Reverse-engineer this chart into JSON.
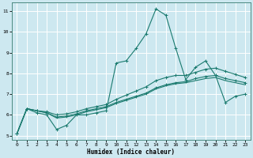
{
  "xlabel": "Humidex (Indice chaleur)",
  "xlim": [
    -0.5,
    23.5
  ],
  "ylim": [
    4.8,
    11.4
  ],
  "yticks": [
    5,
    6,
    7,
    8,
    9,
    10,
    11
  ],
  "xticks": [
    0,
    1,
    2,
    3,
    4,
    5,
    6,
    7,
    8,
    9,
    10,
    11,
    12,
    13,
    14,
    15,
    16,
    17,
    18,
    19,
    20,
    21,
    22,
    23
  ],
  "bg_color": "#cde8f0",
  "grid_color": "#ffffff",
  "line_color": "#1a7a6e",
  "line1_y": [
    5.1,
    6.3,
    6.1,
    6.0,
    5.3,
    5.5,
    6.0,
    6.0,
    6.1,
    6.2,
    8.5,
    8.6,
    9.2,
    9.9,
    11.1,
    10.8,
    9.2,
    7.7,
    8.3,
    8.6,
    7.9,
    6.6,
    6.9,
    7.0
  ],
  "line2_y": [
    5.1,
    6.3,
    6.2,
    6.1,
    5.9,
    5.95,
    6.05,
    6.2,
    6.3,
    6.4,
    6.6,
    6.75,
    6.9,
    7.05,
    7.3,
    7.45,
    7.55,
    7.6,
    7.75,
    7.85,
    7.9,
    7.75,
    7.65,
    7.55
  ],
  "line3_y": [
    5.1,
    6.3,
    6.2,
    6.15,
    6.0,
    6.05,
    6.15,
    6.3,
    6.4,
    6.5,
    6.75,
    6.95,
    7.15,
    7.35,
    7.65,
    7.8,
    7.9,
    7.9,
    8.05,
    8.2,
    8.25,
    8.1,
    7.95,
    7.8
  ],
  "line4_y": [
    5.1,
    6.3,
    6.2,
    6.1,
    5.85,
    5.9,
    6.0,
    6.15,
    6.25,
    6.35,
    6.55,
    6.7,
    6.85,
    7.0,
    7.25,
    7.4,
    7.5,
    7.55,
    7.65,
    7.75,
    7.8,
    7.65,
    7.55,
    7.45
  ]
}
